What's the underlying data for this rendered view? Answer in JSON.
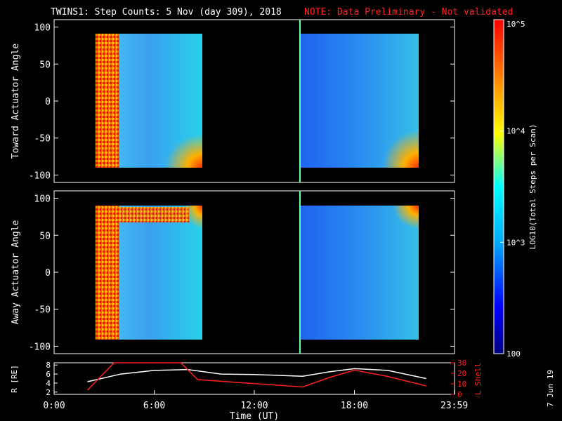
{
  "header": {
    "title": "TWINS1: Step Counts:  5 Nov (day 309), 2018",
    "note": "NOTE: Data Preliminary - Not validated"
  },
  "footer": {
    "date_stamp": "7 Jun 19"
  },
  "colors": {
    "background": "#000000",
    "note": "#ff2020",
    "marker_line": "#66ff99",
    "r_line": "#ffffff",
    "l_line": "#ff2020"
  },
  "chart_data": [
    {
      "type": "heatmap",
      "ylabel": "Toward Actuator Angle",
      "ylim": [
        -110,
        110
      ],
      "yticks": [
        "100",
        "50",
        "0",
        "-50",
        "-100"
      ],
      "data_blocks": [
        {
          "t_start": "2:00",
          "t_end": "8:50",
          "angle_range": [
            -90,
            90
          ]
        },
        {
          "t_start": "15:00",
          "t_end": "22:20",
          "angle_range": [
            -90,
            90
          ]
        }
      ]
    },
    {
      "type": "heatmap",
      "ylabel": "Away Actuator Angle",
      "ylim": [
        -110,
        110
      ],
      "yticks": [
        "100",
        "50",
        "0",
        "-50",
        "-100"
      ],
      "data_blocks": [
        {
          "t_start": "2:00",
          "t_end": "8:50",
          "angle_range": [
            -90,
            90
          ]
        },
        {
          "t_start": "15:00",
          "t_end": "22:20",
          "angle_range": [
            -90,
            90
          ]
        }
      ]
    },
    {
      "type": "line",
      "ylabel_left": "R [RE]",
      "ylabel_right": "L Shell",
      "yticks_left": [
        "8",
        "6",
        "4",
        "2"
      ],
      "yticks_right": [
        "30",
        "20",
        "10",
        "0"
      ],
      "xlabel": "Time (UT)",
      "xticks": [
        "0:00",
        "6:00",
        "12:00",
        "18:00",
        "23:59"
      ],
      "series": [
        {
          "key": "R",
          "x": [
            2.0,
            4.0,
            6.0,
            8.0,
            10.0,
            12.0,
            14.9,
            16.5,
            18.0,
            20.0,
            22.3
          ],
          "y": [
            4.3,
            6.0,
            6.8,
            7.0,
            6.0,
            5.9,
            5.5,
            6.5,
            7.2,
            6.8,
            5.0
          ]
        },
        {
          "key": "L",
          "x": [
            2.0,
            3.6,
            7.6,
            8.6,
            14.9,
            16.5,
            18.0,
            20.0,
            22.3
          ],
          "y": [
            4,
            30,
            30,
            14,
            7,
            16,
            23,
            17,
            8
          ]
        }
      ],
      "xlim": [
        0,
        24
      ],
      "ylim_left": [
        1.5,
        8.5
      ],
      "ylim_right": [
        0,
        30
      ]
    }
  ],
  "colorbar": {
    "label": "LOG10(Total Steps per Scan)",
    "ticks": [
      "10^5",
      "10^4",
      "10^3",
      "100"
    ],
    "range_log10": [
      2,
      5
    ],
    "colors": [
      "#00007f",
      "#0000ff",
      "#00a8ff",
      "#00ffff",
      "#ffff00",
      "#ff8000",
      "#ff0000"
    ]
  }
}
